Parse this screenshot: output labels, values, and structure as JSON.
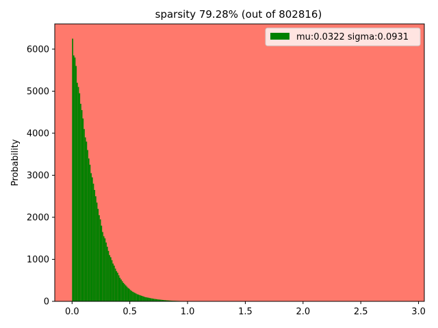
{
  "chart_data": {
    "type": "bar",
    "title": "sparsity 79.28% (out of 802816)",
    "xlabel": "",
    "ylabel": "Probability",
    "xlim": [
      -0.15,
      3.05
    ],
    "ylim": [
      0,
      6600
    ],
    "xticks": [
      "0.0",
      "0.5",
      "1.0",
      "1.5",
      "2.0",
      "2.5",
      "3.0"
    ],
    "yticks": [
      "0",
      "1000",
      "2000",
      "3000",
      "4000",
      "5000",
      "6000"
    ],
    "background_color": "#ff796c",
    "bar_color": "#008000",
    "bin_width": 0.01,
    "legend": {
      "label": "mu:0.0322 sigma:0.0931",
      "location": "upper right"
    },
    "bin_start": [
      0.0,
      0.01,
      0.02,
      0.03,
      0.04,
      0.05,
      0.06,
      0.07,
      0.08,
      0.09,
      0.1,
      0.11,
      0.12,
      0.13,
      0.14,
      0.15,
      0.16,
      0.17,
      0.18,
      0.19,
      0.2,
      0.21,
      0.22,
      0.23,
      0.24,
      0.25,
      0.26,
      0.27,
      0.28,
      0.29,
      0.3,
      0.31,
      0.32,
      0.33,
      0.34,
      0.35,
      0.36,
      0.37,
      0.38,
      0.39,
      0.4,
      0.41,
      0.42,
      0.43,
      0.44,
      0.45,
      0.46,
      0.47,
      0.48,
      0.49,
      0.5,
      0.51,
      0.52,
      0.53,
      0.54,
      0.55,
      0.56,
      0.57,
      0.58,
      0.59,
      0.6,
      0.61,
      0.62,
      0.63,
      0.64,
      0.65,
      0.66,
      0.67,
      0.68,
      0.69,
      0.7,
      0.71,
      0.72,
      0.73,
      0.74,
      0.75,
      0.76,
      0.77,
      0.78,
      0.79,
      0.8,
      0.81,
      0.82,
      0.83,
      0.84,
      0.85,
      0.86,
      0.87,
      0.88,
      0.89,
      0.9,
      0.91,
      0.92,
      0.93,
      0.94,
      0.95,
      0.96,
      0.97,
      0.98,
      0.99,
      1.0,
      1.01,
      1.02,
      1.03,
      1.04,
      1.05,
      1.06,
      1.07,
      1.08,
      1.09,
      1.1,
      1.11,
      1.12,
      1.13,
      1.14,
      1.15,
      1.16,
      1.17,
      1.18,
      1.19
    ],
    "values": [
      6250,
      5850,
      5800,
      5600,
      5200,
      5100,
      4950,
      4700,
      4550,
      4350,
      4100,
      3900,
      3800,
      3600,
      3400,
      3250,
      3050,
      2950,
      2800,
      2650,
      2500,
      2350,
      2200,
      2050,
      1950,
      1800,
      1650,
      1550,
      1500,
      1400,
      1300,
      1200,
      1100,
      1050,
      980,
      900,
      850,
      780,
      720,
      680,
      620,
      560,
      520,
      480,
      440,
      410,
      380,
      350,
      320,
      300,
      270,
      250,
      230,
      215,
      200,
      185,
      170,
      160,
      150,
      140,
      130,
      120,
      110,
      100,
      95,
      90,
      85,
      78,
      72,
      68,
      62,
      58,
      54,
      50,
      46,
      43,
      40,
      37,
      34,
      31,
      28,
      26,
      24,
      22,
      20,
      18,
      16,
      15,
      14,
      13,
      12,
      11,
      10,
      9,
      8,
      7,
      6,
      5,
      5,
      4,
      4,
      3,
      3,
      3,
      2,
      2,
      2,
      2,
      1,
      1,
      1,
      1,
      1,
      1,
      1,
      1,
      1,
      1,
      1,
      1
    ]
  }
}
